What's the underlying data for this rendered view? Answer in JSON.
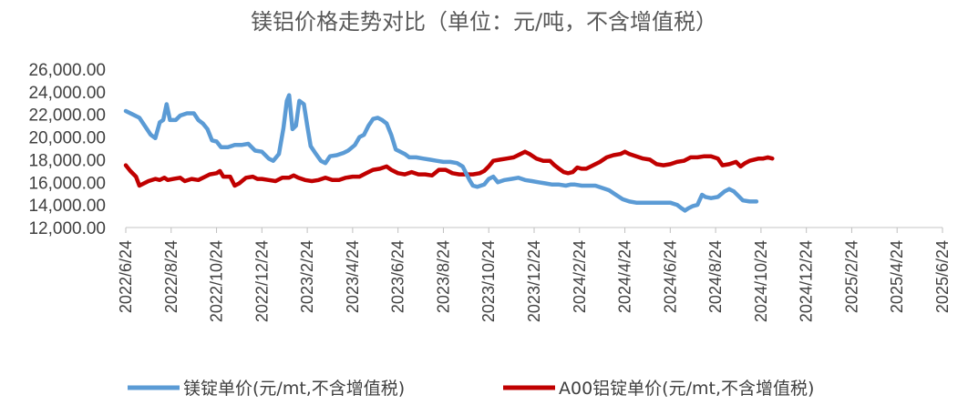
{
  "chart_data": {
    "type": "line",
    "title": "镁铝价格走势对比（单位：元/吨，不含增值税）",
    "xlabel": "",
    "ylabel": "",
    "ylim": [
      12000,
      26000
    ],
    "y_ticks": [
      "26,000.00",
      "24,000.00",
      "22,000.00",
      "20,000.00",
      "18,000.00",
      "16,000.00",
      "14,000.00",
      "12,000.00"
    ],
    "x_ticks": [
      "2022/6/24",
      "2022/8/24",
      "2022/10/24",
      "2022/12/24",
      "2023/2/24",
      "2023/4/24",
      "2023/6/24",
      "2023/8/24",
      "2023/10/24",
      "2023/12/24",
      "2024/2/24",
      "2024/4/24",
      "2024/6/24",
      "2024/8/24",
      "2024/10/24",
      "2024/12/24",
      "2025/2/24",
      "2025/4/24",
      "2025/6/24"
    ],
    "grid": false,
    "legend_position": "bottom",
    "series": [
      {
        "name": "镁锭单价(元/mt,不含增值税)",
        "color": "#5B9BD5",
        "points": [
          [
            0,
            22300
          ],
          [
            0.3,
            22000
          ],
          [
            0.6,
            21700
          ],
          [
            0.9,
            20800
          ],
          [
            1.1,
            20200
          ],
          [
            1.3,
            19900
          ],
          [
            1.5,
            21300
          ],
          [
            1.65,
            21500
          ],
          [
            1.8,
            22900
          ],
          [
            1.95,
            21500
          ],
          [
            2.2,
            21500
          ],
          [
            2.4,
            21900
          ],
          [
            2.7,
            22100
          ],
          [
            3.0,
            22100
          ],
          [
            3.2,
            21500
          ],
          [
            3.4,
            21200
          ],
          [
            3.6,
            20700
          ],
          [
            3.8,
            19700
          ],
          [
            4.0,
            19600
          ],
          [
            4.2,
            19100
          ],
          [
            4.5,
            19100
          ],
          [
            4.8,
            19300
          ],
          [
            5.1,
            19300
          ],
          [
            5.4,
            19400
          ],
          [
            5.7,
            18800
          ],
          [
            6.0,
            18700
          ],
          [
            6.3,
            18100
          ],
          [
            6.5,
            17900
          ],
          [
            6.75,
            18500
          ],
          [
            6.95,
            20800
          ],
          [
            7.1,
            23200
          ],
          [
            7.2,
            23700
          ],
          [
            7.35,
            20700
          ],
          [
            7.5,
            21000
          ],
          [
            7.65,
            23200
          ],
          [
            7.85,
            22900
          ],
          [
            8.0,
            21000
          ],
          [
            8.15,
            19200
          ],
          [
            8.35,
            18600
          ],
          [
            8.6,
            17900
          ],
          [
            8.8,
            17700
          ],
          [
            9.0,
            18300
          ],
          [
            9.3,
            18400
          ],
          [
            9.6,
            18600
          ],
          [
            9.8,
            18800
          ],
          [
            10.1,
            19300
          ],
          [
            10.3,
            20000
          ],
          [
            10.5,
            20200
          ],
          [
            10.7,
            21000
          ],
          [
            10.9,
            21600
          ],
          [
            11.1,
            21700
          ],
          [
            11.3,
            21500
          ],
          [
            11.5,
            21200
          ],
          [
            11.7,
            20200
          ],
          [
            11.9,
            18900
          ],
          [
            12.1,
            18700
          ],
          [
            12.3,
            18500
          ],
          [
            12.5,
            18200
          ],
          [
            12.8,
            18200
          ],
          [
            13.1,
            18100
          ],
          [
            13.4,
            18000
          ],
          [
            13.7,
            17900
          ],
          [
            14.0,
            17800
          ],
          [
            14.3,
            17800
          ],
          [
            14.6,
            17700
          ],
          [
            14.85,
            17400
          ],
          [
            15.0,
            16800
          ],
          [
            15.15,
            16200
          ],
          [
            15.3,
            15700
          ],
          [
            15.5,
            15600
          ],
          [
            15.8,
            15800
          ],
          [
            16.0,
            16300
          ],
          [
            16.2,
            16500
          ],
          [
            16.4,
            16000
          ],
          [
            16.7,
            16200
          ],
          [
            17.0,
            16300
          ],
          [
            17.3,
            16400
          ],
          [
            17.6,
            16200
          ],
          [
            17.9,
            16100
          ],
          [
            18.2,
            16000
          ],
          [
            18.5,
            15900
          ],
          [
            18.8,
            15800
          ],
          [
            19.1,
            15800
          ],
          [
            19.4,
            15700
          ],
          [
            19.6,
            15800
          ],
          [
            19.8,
            15800
          ],
          [
            20.1,
            15700
          ],
          [
            20.4,
            15700
          ],
          [
            20.7,
            15700
          ],
          [
            21.0,
            15500
          ],
          [
            21.3,
            15300
          ],
          [
            21.6,
            14900
          ],
          [
            21.9,
            14500
          ],
          [
            22.2,
            14300
          ],
          [
            22.5,
            14200
          ],
          [
            23.0,
            14200
          ],
          [
            23.5,
            14200
          ],
          [
            24.0,
            14200
          ],
          [
            24.3,
            14000
          ],
          [
            24.5,
            13700
          ],
          [
            24.65,
            13500
          ],
          [
            24.8,
            13700
          ],
          [
            25.0,
            13900
          ],
          [
            25.2,
            14000
          ],
          [
            25.4,
            14900
          ],
          [
            25.55,
            14700
          ],
          [
            25.8,
            14600
          ],
          [
            26.1,
            14700
          ],
          [
            26.4,
            15200
          ],
          [
            26.6,
            15400
          ],
          [
            26.8,
            15200
          ],
          [
            27.0,
            14800
          ],
          [
            27.2,
            14400
          ],
          [
            27.5,
            14300
          ],
          [
            27.8,
            14300
          ]
        ]
      },
      {
        "name": "A00铝锭单价(元/mt,不含增值税)",
        "color": "#C00000",
        "points": [
          [
            0,
            17500
          ],
          [
            0.2,
            17000
          ],
          [
            0.45,
            16500
          ],
          [
            0.6,
            15700
          ],
          [
            0.8,
            15900
          ],
          [
            1.0,
            16100
          ],
          [
            1.3,
            16300
          ],
          [
            1.5,
            16200
          ],
          [
            1.7,
            16400
          ],
          [
            1.85,
            16200
          ],
          [
            2.1,
            16300
          ],
          [
            2.4,
            16400
          ],
          [
            2.6,
            16100
          ],
          [
            2.9,
            16300
          ],
          [
            3.2,
            16200
          ],
          [
            3.5,
            16500
          ],
          [
            3.7,
            16700
          ],
          [
            4.0,
            16800
          ],
          [
            4.15,
            17000
          ],
          [
            4.3,
            16500
          ],
          [
            4.6,
            16500
          ],
          [
            4.8,
            15700
          ],
          [
            5.0,
            15900
          ],
          [
            5.3,
            16400
          ],
          [
            5.6,
            16500
          ],
          [
            5.8,
            16300
          ],
          [
            6.0,
            16300
          ],
          [
            6.3,
            16200
          ],
          [
            6.6,
            16100
          ],
          [
            6.9,
            16400
          ],
          [
            7.2,
            16400
          ],
          [
            7.4,
            16600
          ],
          [
            7.6,
            16400
          ],
          [
            7.9,
            16200
          ],
          [
            8.2,
            16100
          ],
          [
            8.5,
            16200
          ],
          [
            8.8,
            16400
          ],
          [
            9.1,
            16200
          ],
          [
            9.4,
            16200
          ],
          [
            9.7,
            16400
          ],
          [
            10.0,
            16500
          ],
          [
            10.3,
            16500
          ],
          [
            10.6,
            16800
          ],
          [
            10.9,
            17100
          ],
          [
            11.2,
            17200
          ],
          [
            11.5,
            17400
          ],
          [
            11.7,
            17100
          ],
          [
            12.0,
            16800
          ],
          [
            12.3,
            16700
          ],
          [
            12.6,
            16900
          ],
          [
            12.9,
            16700
          ],
          [
            13.2,
            16700
          ],
          [
            13.5,
            16600
          ],
          [
            13.8,
            17100
          ],
          [
            14.1,
            17100
          ],
          [
            14.4,
            16800
          ],
          [
            14.7,
            16700
          ],
          [
            15.0,
            16700
          ],
          [
            15.3,
            16700
          ],
          [
            15.6,
            16800
          ],
          [
            15.8,
            17000
          ],
          [
            16.0,
            17400
          ],
          [
            16.2,
            17900
          ],
          [
            16.5,
            18000
          ],
          [
            16.8,
            18100
          ],
          [
            17.1,
            18200
          ],
          [
            17.4,
            18500
          ],
          [
            17.6,
            18700
          ],
          [
            17.8,
            18500
          ],
          [
            18.1,
            18100
          ],
          [
            18.4,
            17900
          ],
          [
            18.7,
            17900
          ],
          [
            18.9,
            17500
          ],
          [
            19.1,
            17200
          ],
          [
            19.3,
            16900
          ],
          [
            19.5,
            16800
          ],
          [
            19.7,
            16900
          ],
          [
            19.9,
            17300
          ],
          [
            20.1,
            17200
          ],
          [
            20.3,
            17200
          ],
          [
            20.6,
            17500
          ],
          [
            20.9,
            17800
          ],
          [
            21.2,
            18200
          ],
          [
            21.5,
            18400
          ],
          [
            21.8,
            18500
          ],
          [
            22.0,
            18700
          ],
          [
            22.2,
            18500
          ],
          [
            22.5,
            18300
          ],
          [
            22.8,
            18100
          ],
          [
            23.1,
            18000
          ],
          [
            23.4,
            17600
          ],
          [
            23.7,
            17500
          ],
          [
            24.0,
            17600
          ],
          [
            24.3,
            17800
          ],
          [
            24.6,
            17900
          ],
          [
            24.9,
            18200
          ],
          [
            25.2,
            18200
          ],
          [
            25.5,
            18300
          ],
          [
            25.8,
            18300
          ],
          [
            26.1,
            18100
          ],
          [
            26.3,
            17500
          ],
          [
            26.6,
            17600
          ],
          [
            26.9,
            17800
          ],
          [
            27.1,
            17400
          ],
          [
            27.3,
            17700
          ],
          [
            27.5,
            17900
          ],
          [
            27.7,
            18000
          ],
          [
            27.9,
            18100
          ],
          [
            28.1,
            18100
          ],
          [
            28.3,
            18200
          ],
          [
            28.5,
            18100
          ]
        ]
      }
    ]
  }
}
